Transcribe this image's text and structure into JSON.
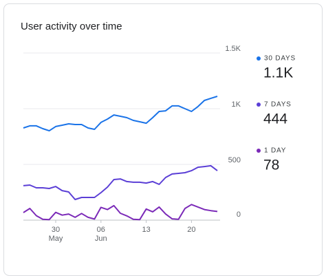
{
  "chart_data": {
    "type": "line",
    "title": "User activity over time",
    "categories": [
      null,
      null,
      null,
      null,
      null,
      {
        "day": "30",
        "month": "May"
      },
      null,
      null,
      null,
      null,
      null,
      null,
      {
        "day": "06",
        "month": "Jun"
      },
      null,
      null,
      null,
      null,
      null,
      null,
      {
        "day": "13"
      },
      null,
      null,
      null,
      null,
      null,
      null,
      {
        "day": "20"
      },
      null,
      null,
      null,
      null
    ],
    "series": [
      {
        "name": "30 DAYS",
        "color": "#1a73e8",
        "latest_label": "1.1K",
        "values": [
          827,
          846,
          846,
          821,
          802,
          840,
          852,
          864,
          858,
          858,
          827,
          815,
          877,
          907,
          944,
          932,
          920,
          895,
          883,
          870,
          920,
          975,
          981,
          1025,
          1025,
          1000,
          975,
          1019,
          1074,
          1093,
          1111
        ]
      },
      {
        "name": "7 DAYS",
        "color": "#5b3fd6",
        "latest_label": "444",
        "values": [
          309,
          315,
          290,
          290,
          284,
          302,
          265,
          253,
          185,
          204,
          204,
          204,
          247,
          296,
          364,
          370,
          346,
          340,
          340,
          333,
          346,
          321,
          383,
          414,
          420,
          426,
          444,
          475,
          481,
          488,
          444
        ]
      },
      {
        "name": "1 DAY",
        "color": "#7b2ab8",
        "latest_label": "78",
        "values": [
          68,
          105,
          40,
          8,
          5,
          70,
          45,
          55,
          25,
          60,
          25,
          10,
          115,
          95,
          130,
          62,
          38,
          8,
          5,
          100,
          75,
          118,
          55,
          12,
          8,
          105,
          140,
          118,
          95,
          85,
          78
        ]
      }
    ],
    "ylim": [
      0,
      1500
    ],
    "yticks": [
      0,
      500,
      {
        "value": 1000,
        "label": "1K"
      },
      {
        "value": 1500,
        "label": "1.5K"
      }
    ],
    "grid": true
  }
}
